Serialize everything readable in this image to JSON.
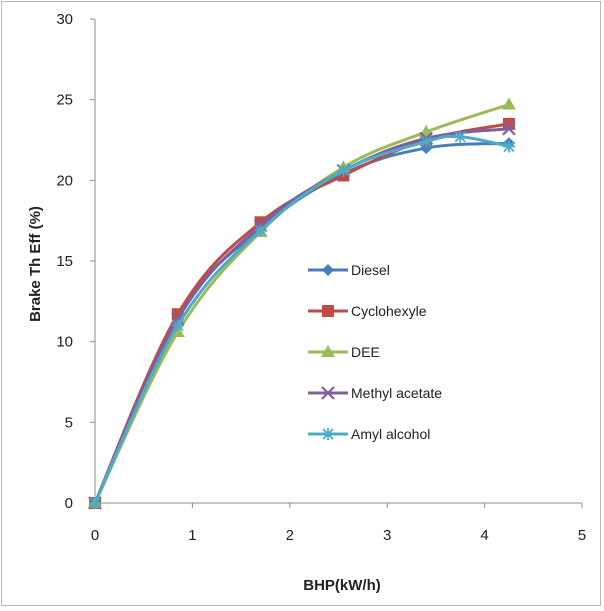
{
  "chart_data": {
    "type": "line",
    "title": "",
    "xlabel": "BHP(kW/h)",
    "ylabel": "Brake Th Eff (%)",
    "xlim": [
      0,
      5
    ],
    "ylim": [
      0,
      30
    ],
    "xticks": [
      0,
      1,
      2,
      3,
      4,
      5
    ],
    "yticks": [
      0,
      5,
      10,
      15,
      20,
      25,
      30
    ],
    "grid": false,
    "legend_position": "center-right",
    "series": [
      {
        "name": "Diesel",
        "color": "#4a7ebb",
        "marker": "diamond",
        "x": [
          0,
          0.85,
          1.7,
          2.55,
          3.4,
          4.25
        ],
        "y": [
          0,
          11.6,
          17.0,
          20.4,
          22.0,
          22.3
        ]
      },
      {
        "name": "Cyclohexyle",
        "color": "#be4b48",
        "marker": "square",
        "x": [
          0,
          0.85,
          1.7,
          2.55,
          3.4,
          4.25
        ],
        "y": [
          0,
          11.7,
          17.4,
          20.3,
          22.5,
          23.5
        ]
      },
      {
        "name": "DEE",
        "color": "#9bbb59",
        "marker": "triangle",
        "x": [
          0,
          0.85,
          1.7,
          2.55,
          3.4,
          4.25
        ],
        "y": [
          0,
          10.6,
          16.8,
          20.8,
          23.0,
          24.7
        ]
      },
      {
        "name": "Methyl acetate",
        "color": "#7d60a0",
        "marker": "x",
        "x": [
          0,
          0.85,
          1.7,
          2.55,
          3.4,
          4.25
        ],
        "y": [
          0,
          11.4,
          17.2,
          20.6,
          22.6,
          23.2
        ]
      },
      {
        "name": "Amyl alcohol",
        "color": "#4bacc6",
        "marker": "star",
        "x": [
          0,
          0.85,
          1.7,
          2.55,
          3.4,
          3.75,
          4.25
        ],
        "y": [
          0,
          11.0,
          16.9,
          20.6,
          22.4,
          22.7,
          22.1
        ]
      }
    ]
  }
}
